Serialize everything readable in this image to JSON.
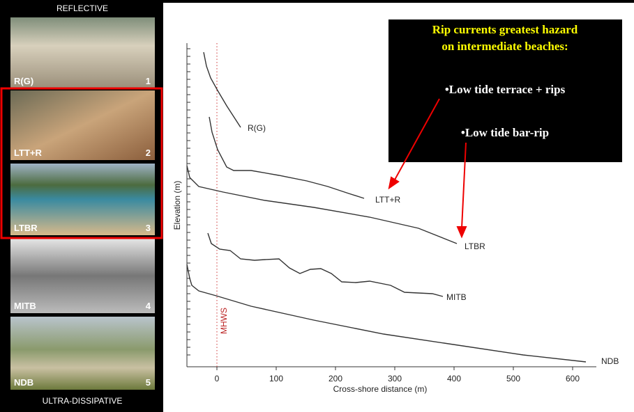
{
  "panel": {
    "top_label": "REFLECTIVE",
    "bottom_label": "ULTRA-DISSIPATIVE",
    "photos": [
      {
        "code": "R(G)",
        "number": "1"
      },
      {
        "code": "LTT+R",
        "number": "2"
      },
      {
        "code": "LTBR",
        "number": "3"
      },
      {
        "code": "MITB",
        "number": "4"
      },
      {
        "code": "NDB",
        "number": "5"
      }
    ]
  },
  "profile": {
    "x_label": "Cross-shore distance (m)",
    "y_label": "Elevation (m)",
    "reference_line": "MHWS",
    "xticks": [
      0,
      100,
      200,
      300,
      400,
      500,
      600
    ],
    "profile_labels": [
      "R(G)",
      "LTT+R",
      "LTBR",
      "MITB",
      "NDB"
    ]
  },
  "callout": {
    "title": [
      "Rip currents greatest hazard",
      "on intermediate beaches:"
    ],
    "items": [
      "•Low tide terrace + rips",
      "•Low tide bar-rip"
    ]
  }
}
